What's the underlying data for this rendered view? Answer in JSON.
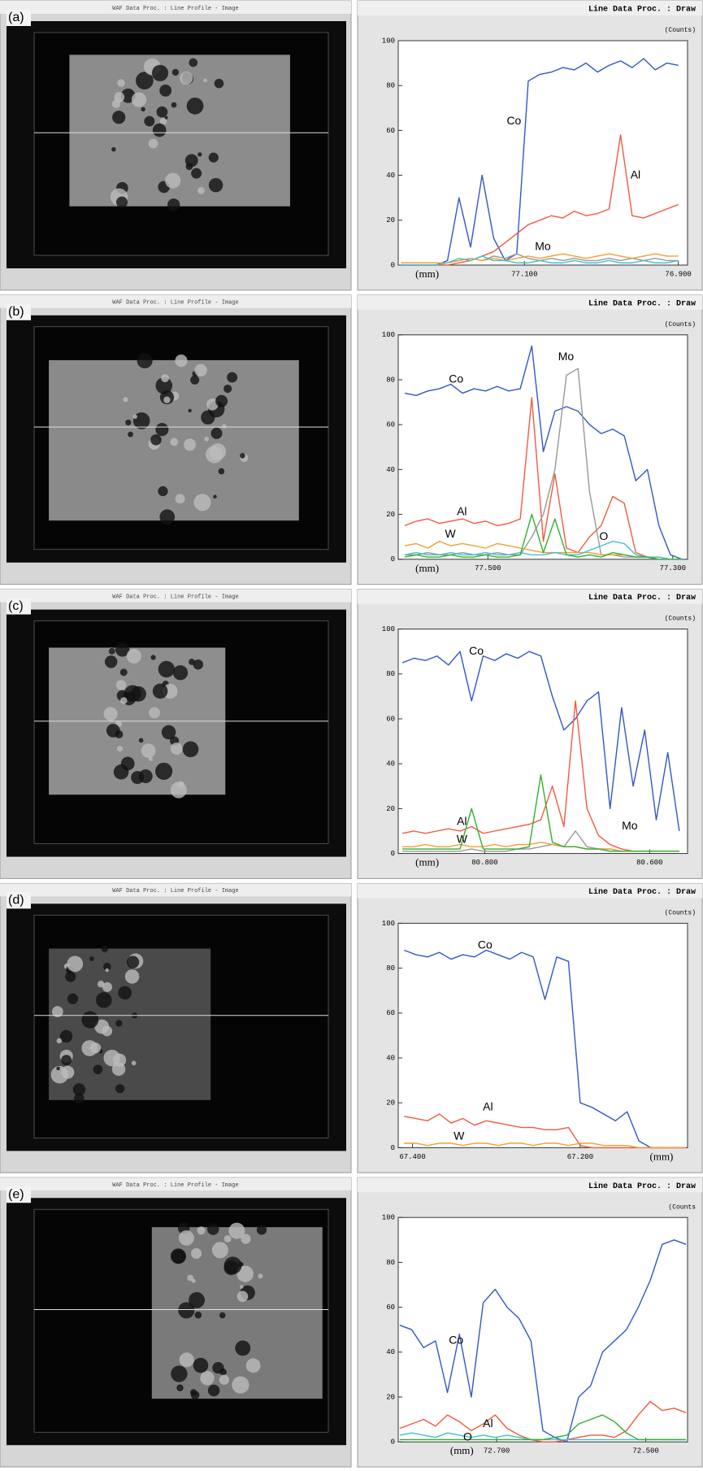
{
  "panels": [
    {
      "label": "(a)",
      "image_title": "WAF Data Proc. : Line Profile - Image"
    },
    {
      "label": "(b)",
      "image_title": "WAF Data Proc. : Line Profile - Image"
    },
    {
      "label": "(c)",
      "image_title": "WAF Data Proc. : Line Profile - Image"
    },
    {
      "label": "(d)",
      "image_title": "WAF Data Proc. : Line Profile - Image"
    },
    {
      "label": "(e)",
      "image_title": "WAF Data Proc. : Line Profile - Image"
    }
  ],
  "chart_data": [
    {
      "type": "line",
      "title": "Line Data Proc. : Draw",
      "unit_label": "(Counts)",
      "x_label": "(mm)",
      "xlim": [
        77.264,
        76.888
      ],
      "xticks": [
        {
          "value": 77.1,
          "label": "77.100"
        },
        {
          "value": 76.9,
          "label": "76.900"
        }
      ],
      "ylim": [
        0,
        100
      ],
      "yticks": [
        0,
        20,
        40,
        60,
        80,
        100
      ],
      "x": [
        77.26,
        77.245,
        77.23,
        77.215,
        77.2,
        77.185,
        77.17,
        77.155,
        77.14,
        77.125,
        77.11,
        77.095,
        77.08,
        77.065,
        77.05,
        77.035,
        77.02,
        77.005,
        76.99,
        76.975,
        76.96,
        76.945,
        76.93,
        76.915,
        76.9
      ],
      "series": [
        {
          "name": "Co",
          "color": "#3456c8",
          "values": [
            0,
            0,
            0,
            0,
            2,
            30,
            8,
            40,
            12,
            2,
            5,
            82,
            85,
            86,
            88,
            87,
            90,
            86,
            89,
            91,
            88,
            92,
            87,
            90,
            89
          ]
        },
        {
          "name": "Al",
          "color": "#f05a40",
          "values": [
            0,
            0,
            0,
            0,
            0,
            1,
            2,
            4,
            6,
            10,
            14,
            18,
            20,
            22,
            21,
            24,
            22,
            23,
            25,
            58,
            22,
            21,
            23,
            25,
            27
          ]
        },
        {
          "name": "Mo",
          "color": "#999999",
          "values": [
            1,
            1,
            1,
            1,
            1,
            2,
            3,
            2,
            4,
            3,
            5,
            3,
            2,
            3,
            2,
            3,
            2,
            2,
            3,
            2,
            3,
            2,
            3,
            2,
            2
          ]
        },
        {
          "color": "#f0a030",
          "values": [
            1,
            1,
            1,
            1,
            1,
            2,
            3,
            2,
            3,
            2,
            3,
            4,
            3,
            4,
            5,
            4,
            3,
            4,
            5,
            4,
            3,
            4,
            5,
            4,
            4
          ]
        },
        {
          "color": "#40c0d0",
          "values": [
            0,
            0,
            0,
            0,
            1,
            3,
            2,
            4,
            2,
            2,
            1,
            1,
            2,
            1,
            1,
            2,
            1,
            1,
            2,
            1,
            1,
            2,
            1,
            1,
            2
          ]
        }
      ]
    },
    {
      "type": "line",
      "title": "Line Data Proc. : Draw",
      "unit_label": "(Counts)",
      "x_label": "(mm)",
      "xlim": [
        77.597,
        77.284
      ],
      "xticks": [
        {
          "value": 77.5,
          "label": "77.500"
        },
        {
          "value": 77.3,
          "label": "77.300"
        }
      ],
      "ylim": [
        0,
        100
      ],
      "yticks": [
        0,
        20,
        40,
        60,
        80,
        100
      ],
      "x": [
        77.59,
        77.5775,
        77.565,
        77.5525,
        77.54,
        77.5275,
        77.515,
        77.5025,
        77.49,
        77.4775,
        77.465,
        77.4525,
        77.44,
        77.4275,
        77.415,
        77.4025,
        77.39,
        77.3775,
        77.365,
        77.3525,
        77.34,
        77.3275,
        77.315,
        77.3025,
        77.29
      ],
      "series": [
        {
          "name": "Co",
          "color": "#3456c8",
          "values": [
            74,
            73,
            75,
            76,
            78,
            74,
            76,
            75,
            77,
            75,
            76,
            95,
            48,
            66,
            68,
            66,
            60,
            56,
            58,
            55,
            35,
            40,
            15,
            2,
            0
          ]
        },
        {
          "name": "Al",
          "color": "#f05a40",
          "values": [
            15,
            17,
            18,
            16,
            17,
            18,
            16,
            17,
            15,
            16,
            18,
            72,
            8,
            38,
            5,
            3,
            10,
            15,
            28,
            25,
            3,
            1,
            0,
            0,
            0
          ]
        },
        {
          "name": "Mo",
          "color": "#999999",
          "values": [
            2,
            2,
            3,
            2,
            2,
            3,
            2,
            2,
            3,
            2,
            2,
            10,
            20,
            40,
            82,
            85,
            30,
            2,
            2,
            1,
            1,
            1,
            0,
            0,
            0
          ]
        },
        {
          "name": "W",
          "color": "#f0a030",
          "values": [
            6,
            7,
            5,
            8,
            6,
            7,
            6,
            5,
            7,
            6,
            5,
            4,
            3,
            3,
            3,
            3,
            3,
            2,
            2,
            2,
            1,
            1,
            1,
            0,
            0
          ]
        },
        {
          "name": "O",
          "color": "#40c0d0",
          "values": [
            2,
            3,
            2,
            2,
            3,
            2,
            2,
            3,
            2,
            2,
            3,
            2,
            2,
            3,
            2,
            2,
            4,
            6,
            8,
            7,
            2,
            1,
            1,
            0,
            0
          ]
        },
        {
          "color": "#30b030",
          "values": [
            1,
            2,
            1,
            1,
            2,
            1,
            1,
            2,
            1,
            1,
            2,
            20,
            3,
            18,
            2,
            1,
            2,
            1,
            3,
            2,
            1,
            1,
            0,
            0,
            0
          ]
        }
      ]
    },
    {
      "type": "line",
      "title": "Line Data Proc. : Draw",
      "unit_label": "(Counts)",
      "x_label": "(mm)",
      "xlim": [
        80.905,
        80.554
      ],
      "xticks": [
        {
          "value": 80.8,
          "label": "80.800"
        },
        {
          "value": 80.6,
          "label": "80.600"
        }
      ],
      "ylim": [
        0,
        100
      ],
      "yticks": [
        0,
        20,
        40,
        60,
        80,
        100
      ],
      "x": [
        80.9,
        80.886,
        80.872,
        80.858,
        80.844,
        80.83,
        80.816,
        80.802,
        80.788,
        80.774,
        80.76,
        80.746,
        80.732,
        80.718,
        80.704,
        80.69,
        80.676,
        80.662,
        80.648,
        80.634,
        80.62,
        80.606,
        80.592,
        80.578,
        80.564
      ],
      "series": [
        {
          "name": "Co",
          "color": "#3456c8",
          "values": [
            85,
            87,
            86,
            88,
            84,
            90,
            68,
            88,
            86,
            89,
            87,
            90,
            88,
            70,
            55,
            60,
            68,
            72,
            20,
            65,
            30,
            55,
            15,
            45,
            10
          ]
        },
        {
          "name": "Al",
          "color": "#f05a40",
          "values": [
            9,
            10,
            9,
            10,
            11,
            10,
            12,
            9,
            10,
            11,
            12,
            13,
            15,
            30,
            12,
            68,
            20,
            8,
            4,
            2,
            1,
            1,
            1,
            1,
            1
          ]
        },
        {
          "name": "Mo",
          "color": "#999999",
          "values": [
            1,
            1,
            1,
            1,
            1,
            1,
            2,
            1,
            1,
            1,
            2,
            2,
            3,
            4,
            3,
            10,
            3,
            2,
            2,
            1,
            1,
            1,
            1,
            1,
            1
          ]
        },
        {
          "name": "W",
          "color": "#f0a030",
          "values": [
            3,
            3,
            4,
            3,
            3,
            4,
            3,
            3,
            4,
            3,
            4,
            4,
            5,
            4,
            3,
            3,
            2,
            2,
            2,
            1,
            1,
            1,
            1,
            1,
            1
          ]
        },
        {
          "color": "#30b030",
          "values": [
            2,
            2,
            2,
            2,
            2,
            2,
            20,
            2,
            2,
            2,
            2,
            3,
            35,
            5,
            3,
            3,
            2,
            2,
            1,
            1,
            1,
            1,
            1,
            1,
            1
          ]
        }
      ]
    },
    {
      "type": "line",
      "title": "Line Data Proc. : Draw",
      "unit_label": "(Counts)",
      "x_label": "(mm)",
      "xlim": [
        67.417,
        67.072
      ],
      "xticks": [
        {
          "value": 67.4,
          "label": "67.400"
        },
        {
          "value": 67.2,
          "label": "67.200"
        }
      ],
      "ylim": [
        0,
        100
      ],
      "yticks": [
        0,
        20,
        40,
        60,
        80,
        100
      ],
      "x": [
        67.41,
        67.396,
        67.382,
        67.368,
        67.354,
        67.34,
        67.326,
        67.312,
        67.298,
        67.284,
        67.27,
        67.256,
        67.242,
        67.228,
        67.214,
        67.2,
        67.186,
        67.172,
        67.158,
        67.144,
        67.13,
        67.116,
        67.102,
        67.088,
        67.074
      ],
      "series": [
        {
          "name": "Co",
          "color": "#3456c8",
          "values": [
            88,
            86,
            85,
            87,
            84,
            86,
            85,
            88,
            86,
            84,
            87,
            85,
            66,
            85,
            83,
            20,
            18,
            15,
            12,
            16,
            3,
            0,
            0,
            0,
            0
          ]
        },
        {
          "name": "Al",
          "color": "#f05a40",
          "values": [
            14,
            13,
            12,
            15,
            11,
            13,
            10,
            12,
            11,
            10,
            9,
            9,
            8,
            8,
            9,
            1,
            0,
            0,
            0,
            0,
            0,
            0,
            0,
            0,
            0
          ]
        },
        {
          "name": "W",
          "color": "#f0a030",
          "values": [
            2,
            2,
            1,
            2,
            2,
            1,
            2,
            2,
            1,
            2,
            2,
            1,
            2,
            2,
            1,
            2,
            2,
            1,
            1,
            1,
            0,
            0,
            0,
            0,
            0
          ]
        }
      ]
    },
    {
      "type": "line",
      "title": "Line Data Proc. : Draw",
      "unit_label": "(Counts",
      "x_label": "(mm)",
      "xlim": [
        72.832,
        72.444
      ],
      "xticks": [
        {
          "value": 72.7,
          "label": "72.700"
        },
        {
          "value": 72.5,
          "label": "72.500"
        }
      ],
      "ylim": [
        0,
        100
      ],
      "yticks": [
        0,
        20,
        40,
        60,
        80,
        100
      ],
      "x": [
        72.83,
        72.814,
        72.798,
        72.782,
        72.766,
        72.75,
        72.734,
        72.718,
        72.702,
        72.686,
        72.67,
        72.654,
        72.638,
        72.622,
        72.606,
        72.59,
        72.574,
        72.558,
        72.542,
        72.526,
        72.51,
        72.494,
        72.478,
        72.462,
        72.446
      ],
      "series": [
        {
          "name": "Co",
          "color": "#3456c8",
          "values": [
            52,
            50,
            42,
            45,
            22,
            48,
            20,
            62,
            68,
            60,
            55,
            45,
            5,
            2,
            0,
            20,
            25,
            40,
            45,
            50,
            60,
            72,
            88,
            90,
            88
          ]
        },
        {
          "name": "Al",
          "color": "#f05a40",
          "values": [
            6,
            8,
            10,
            7,
            12,
            9,
            5,
            8,
            12,
            6,
            3,
            1,
            0,
            0,
            1,
            2,
            3,
            3,
            2,
            5,
            12,
            18,
            14,
            15,
            13
          ]
        },
        {
          "name": "O",
          "color": "#40c0d0",
          "values": [
            3,
            4,
            3,
            2,
            4,
            3,
            2,
            3,
            2,
            3,
            2,
            1,
            1,
            1,
            1,
            1,
            1,
            1,
            1,
            1,
            1,
            1,
            1,
            1,
            1
          ]
        },
        {
          "color": "#30b030",
          "values": [
            1,
            1,
            1,
            1,
            1,
            1,
            1,
            1,
            1,
            1,
            1,
            1,
            1,
            2,
            3,
            8,
            10,
            12,
            9,
            4,
            1,
            1,
            1,
            1,
            1
          ]
        }
      ]
    }
  ]
}
